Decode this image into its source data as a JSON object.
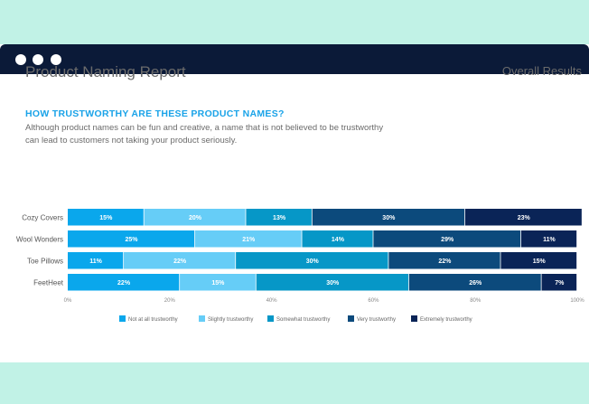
{
  "window": {
    "controls": [
      "close",
      "minimize",
      "maximize"
    ]
  },
  "header": {
    "title": "Product Naming Report",
    "scope": "Overall Results"
  },
  "question": {
    "heading": "HOW TRUSTWORTHY ARE THESE PRODUCT NAMES?",
    "description": "Although product names can be fun and creative, a name that is not believed to be trustworthy can lead to customers not taking your product seriously."
  },
  "chart_data": {
    "type": "bar",
    "orientation": "horizontal",
    "stacked": true,
    "categories": [
      "Cozy Covers",
      "Wool Wonders",
      "Toe Pillows",
      "FeetHeet"
    ],
    "series": [
      {
        "name": "Not at all trustworthy",
        "color": "#0aa7ec",
        "values": [
          15,
          25,
          11,
          22
        ]
      },
      {
        "name": "Slightly trustworthy",
        "color": "#66cdf7",
        "values": [
          20,
          21,
          22,
          15
        ]
      },
      {
        "name": "Somewhat trustworthy",
        "color": "#0697c7",
        "values": [
          13,
          14,
          30,
          30
        ]
      },
      {
        "name": "Very trustworthy",
        "color": "#0c4a7c",
        "values": [
          30,
          29,
          22,
          26
        ]
      },
      {
        "name": "Extremely trustworthy",
        "color": "#0a2457",
        "values": [
          23,
          11,
          15,
          7
        ]
      }
    ],
    "xlim": [
      0,
      100
    ],
    "xticks": [
      "0%",
      "20%",
      "40%",
      "60%",
      "80%",
      "100%"
    ],
    "value_format": "percent",
    "legend_position": "bottom",
    "grid": false
  }
}
